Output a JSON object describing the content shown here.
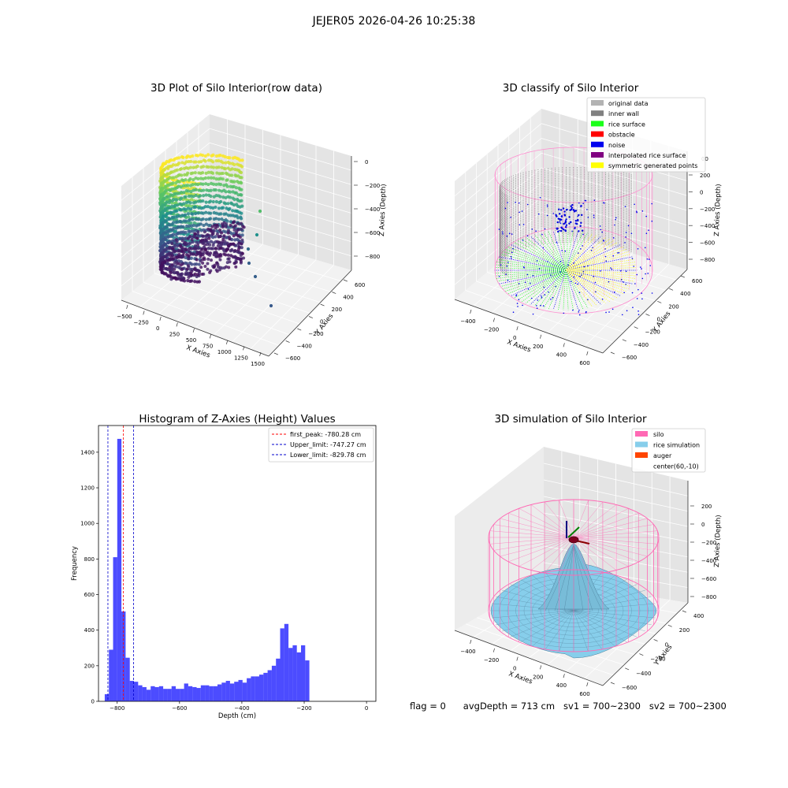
{
  "suptitle": "JEJER05 2026-04-26 10:25:38",
  "panels": {
    "raw": {
      "title": "3D Plot of Silo Interior(row data)",
      "xlabel": "X Axies",
      "ylabel": "Y Axies",
      "zlabel": "Z Axies (Depth)",
      "xticks": [
        "−500",
        "−250",
        "0",
        "250",
        "500",
        "750",
        "1000",
        "1250",
        "1500"
      ],
      "yticks": [
        "600",
        "400",
        "200",
        "0",
        "−200",
        "−400",
        "−600"
      ],
      "zticks": [
        "0",
        "−200",
        "−400",
        "−600",
        "−800"
      ]
    },
    "classify": {
      "title": "3D classify of Silo Interior",
      "xlabel": "X Axies",
      "ylabel": "Y Axies",
      "zlabel": "Z Axies (Depth)",
      "xticks": [
        "−400",
        "−200",
        "0",
        "200",
        "400",
        "600"
      ],
      "yticks": [
        "600",
        "400",
        "200",
        "0",
        "−200",
        "−400",
        "−600"
      ],
      "zticks": [
        "200",
        "0",
        "−200",
        "−400",
        "−600",
        "−800"
      ],
      "ztick_top": "00",
      "legend": [
        {
          "label": "original data",
          "color": "#b3b3b3"
        },
        {
          "label": "inner wall",
          "color": "#808080"
        },
        {
          "label": "rice surface",
          "color": "#19ff19"
        },
        {
          "label": "obstacle",
          "color": "#ff0000"
        },
        {
          "label": "noise",
          "color": "#0000ee"
        },
        {
          "label": "interpolated rice surface",
          "color": "#800080"
        },
        {
          "label": "symmetric generated points",
          "color": "#ffff00"
        }
      ]
    },
    "simulation": {
      "title": "3D simulation of Silo Interior",
      "xlabel": "X Axies",
      "ylabel": "Y Axies",
      "zlabel": "Z Axies (Depth)",
      "xticks": [
        "−400",
        "−200",
        "0",
        "200",
        "400",
        "600"
      ],
      "yticks": [
        "400",
        "200",
        "0",
        "−200",
        "−400",
        "−600"
      ],
      "zticks": [
        "200",
        "0",
        "−200",
        "−400",
        "−600",
        "−800"
      ],
      "legend": [
        {
          "label": "silo",
          "color": "#ff69b4"
        },
        {
          "label": "rice simulation",
          "color": "#87ceeb"
        },
        {
          "label": "auger",
          "color": "#ff4500"
        },
        {
          "label": "center(60,-10)",
          "color": "#ffffff"
        }
      ]
    }
  },
  "chart_data": [
    {
      "type": "scatter",
      "title": "3D Plot of Silo Interior(row data)",
      "xlabel": "X Axies",
      "ylabel": "Y Axies",
      "zlabel": "Z Axies (Depth)",
      "xlim": [
        -500,
        1500
      ],
      "ylim": [
        -600,
        600
      ],
      "zlim": [
        -900,
        0
      ],
      "colormap": "viridis"
    },
    {
      "type": "scatter",
      "title": "3D classify of Silo Interior",
      "xlabel": "X Axies",
      "ylabel": "Y Axies",
      "zlabel": "Z Axies (Depth)",
      "xlim": [
        -500,
        650
      ],
      "ylim": [
        -600,
        650
      ],
      "zlim": [
        -900,
        250
      ],
      "series": [
        {
          "name": "original data"
        },
        {
          "name": "inner wall"
        },
        {
          "name": "rice surface"
        },
        {
          "name": "obstacle"
        },
        {
          "name": "noise"
        },
        {
          "name": "interpolated rice surface"
        },
        {
          "name": "symmetric generated points"
        }
      ],
      "legend_position": "upper-right"
    },
    {
      "type": "bar",
      "title": "Histogram of Z-Axies (Height) Values",
      "xlabel": "Depth (cm)",
      "ylabel": "Frequency",
      "xlim": [
        -860,
        30
      ],
      "ylim": [
        0,
        1550
      ],
      "xticks": [
        -800,
        -600,
        -400,
        -200,
        0
      ],
      "yticks": [
        0,
        200,
        400,
        600,
        800,
        1000,
        1200,
        1400
      ],
      "bin_start": -840,
      "bin_width": 13.4,
      "values": [
        40,
        290,
        810,
        1475,
        505,
        245,
        115,
        110,
        90,
        80,
        65,
        85,
        80,
        85,
        70,
        70,
        85,
        70,
        70,
        100,
        85,
        80,
        75,
        90,
        90,
        85,
        85,
        95,
        105,
        115,
        100,
        110,
        120,
        105,
        130,
        140,
        140,
        150,
        160,
        175,
        200,
        240,
        410,
        435,
        300,
        315,
        275,
        315,
        230
      ],
      "color": "#0000ff",
      "vlines": [
        {
          "label": "first_peak: -780.28 cm",
          "x": -780.28,
          "color": "#ff0000"
        },
        {
          "label": "Upper_limit: -747.27 cm",
          "x": -747.27,
          "color": "#0000cc"
        },
        {
          "label": "Lower_limit: -829.78 cm",
          "x": -829.78,
          "color": "#0000cc"
        }
      ],
      "legend_position": "top-right"
    },
    {
      "type": "area",
      "title": "3D simulation of Silo Interior",
      "xlabel": "X Axies",
      "ylabel": "Y Axies",
      "zlabel": "Z Axies (Depth)",
      "xlim": [
        -500,
        650
      ],
      "ylim": [
        -650,
        450
      ],
      "zlim": [
        -850,
        350
      ],
      "center": [
        60,
        -10
      ],
      "series": [
        {
          "name": "silo"
        },
        {
          "name": "rice simulation"
        },
        {
          "name": "auger"
        }
      ],
      "legend_position": "upper-right"
    }
  ],
  "footer": {
    "flag": "flag = 0",
    "avg": "avgDepth = 713 cm",
    "sv1": "sv1 = 700~2300",
    "sv2": "sv2 = 700~2300"
  }
}
